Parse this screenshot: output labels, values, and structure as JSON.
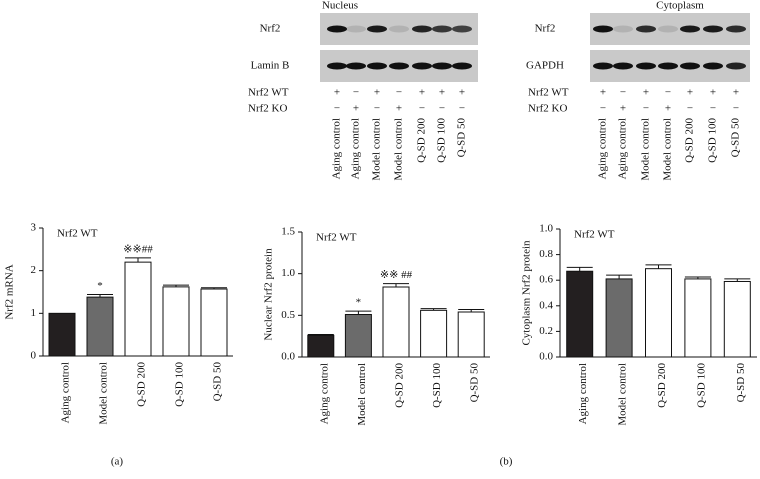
{
  "chart_data": [
    {
      "type": "bar",
      "title": "Nrf2 WT",
      "y_label": "Nrf2 mRNA",
      "categories": [
        "Aging control",
        "Model control",
        "Q-SD 200",
        "Q-SD 100",
        "Q-SD 50"
      ],
      "values": [
        1.0,
        1.38,
        2.2,
        1.62,
        1.57
      ],
      "errors": [
        null,
        0.06,
        0.1,
        0.04,
        0.03
      ],
      "colors": [
        "#231f20",
        "#6b6b6b",
        "#ffffff",
        "#ffffff",
        "#ffffff"
      ],
      "annotations": [
        null,
        "*",
        "※※##",
        null,
        null
      ],
      "ylim": [
        0,
        3
      ],
      "yticks": [
        0,
        1,
        2,
        3
      ]
    },
    {
      "type": "bar",
      "title": "Nrf2 WT",
      "y_label": "Nuclear Nrf2 protein",
      "categories": [
        "Aging control",
        "Model control",
        "Q-SD 200",
        "Q-SD 100",
        "Q-SD 50"
      ],
      "values": [
        0.26,
        0.51,
        0.84,
        0.56,
        0.54
      ],
      "errors": [
        0.01,
        0.04,
        0.04,
        0.02,
        0.03
      ],
      "colors": [
        "#231f20",
        "#6b6b6b",
        "#ffffff",
        "#ffffff",
        "#ffffff"
      ],
      "annotations": [
        null,
        "*",
        "※※ ##",
        null,
        null
      ],
      "ylim": [
        0,
        1.5
      ],
      "yticks": [
        {
          "value": 0,
          "label": "0.0"
        },
        {
          "value": 0.5,
          "label": "0.5"
        },
        {
          "value": 1,
          "label": "1.0"
        },
        {
          "value": 1.5,
          "label": "1.5"
        }
      ]
    },
    {
      "type": "bar",
      "title": "Nrf2 WT",
      "y_label": "Cytoplasm Nrf2 protein",
      "categories": [
        "Aging control",
        "Model control",
        "Q-SD 200",
        "Q-SD 100",
        "Q-SD 50"
      ],
      "values": [
        0.67,
        0.61,
        0.69,
        0.61,
        0.59
      ],
      "errors": [
        0.03,
        0.03,
        0.03,
        0.015,
        0.02
      ],
      "colors": [
        "#231f20",
        "#6b6b6b",
        "#ffffff",
        "#ffffff",
        "#ffffff"
      ],
      "ylim": [
        0,
        1
      ],
      "yticks": [
        {
          "value": 0,
          "label": "0.0"
        },
        0.2,
        0.4,
        0.6,
        0.8,
        {
          "value": 1,
          "label": "1.0"
        }
      ]
    }
  ],
  "blots": [
    {
      "title": "Nucleus",
      "rows": [
        "Nrf2",
        "Lamin B"
      ],
      "conditions": [
        {
          "name": "Nrf2 WT",
          "marks": [
            "+",
            "−",
            "+",
            "−",
            "+",
            "+",
            "+"
          ]
        },
        {
          "name": "Nrf2 KO",
          "marks": [
            "−",
            "+",
            "−",
            "+",
            "−",
            "−",
            "−"
          ]
        }
      ],
      "lanes": [
        "Aging control",
        "Aging control",
        "Model control",
        "Model control",
        "Q-SD 200",
        "Q-SD 100",
        "Q-SD 50"
      ]
    },
    {
      "title": "Cytoplasm",
      "rows": [
        "Nrf2",
        "GAPDH"
      ],
      "conditions": [
        {
          "name": "Nrf2 WT",
          "marks": [
            "+",
            "−",
            "+",
            "−",
            "+",
            "+",
            "+"
          ]
        },
        {
          "name": "Nrf2 KO",
          "marks": [
            "−",
            "+",
            "−",
            "+",
            "−",
            "−",
            "−"
          ]
        }
      ],
      "lanes": [
        "Aging control",
        "Aging control",
        "Model control",
        "Model control",
        "Q-SD 200",
        "Q-SD 100",
        "Q-SD 50"
      ]
    }
  ],
  "panel_labels": [
    "(a)",
    "(b)"
  ]
}
